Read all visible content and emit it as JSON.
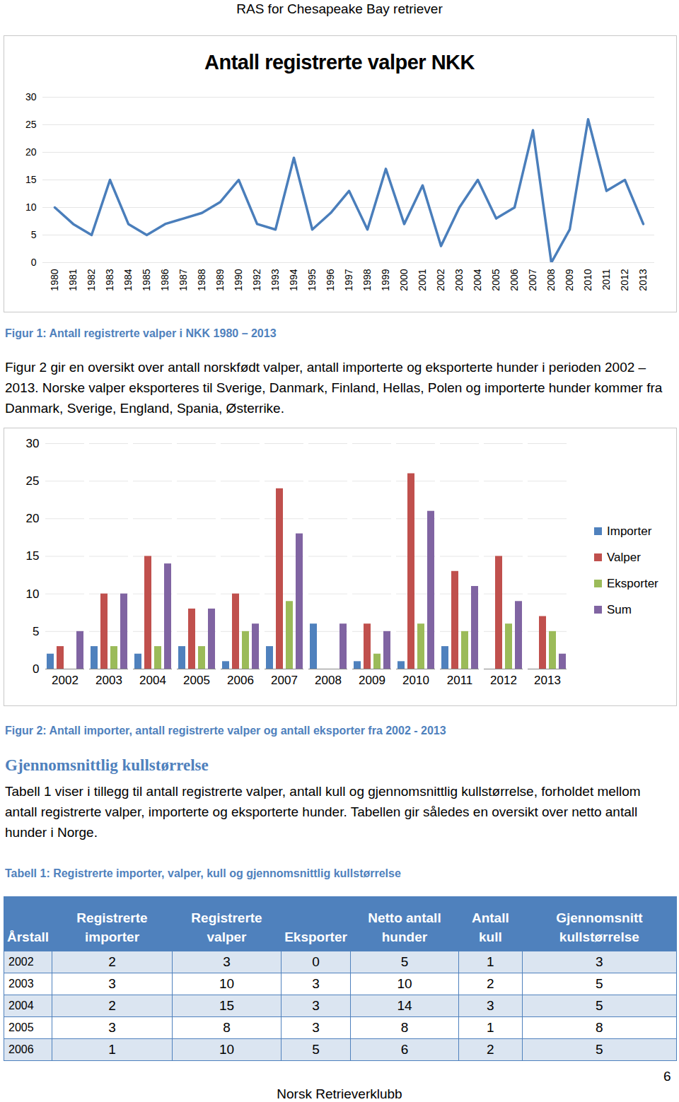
{
  "header": "RAS for Chesapeake Bay retriever",
  "chart_data": [
    {
      "type": "line",
      "title": "Antall registrerte valper NKK",
      "categories": [
        "1980",
        "1981",
        "1982",
        "1983",
        "1984",
        "1985",
        "1986",
        "1987",
        "1988",
        "1989",
        "1990",
        "1992",
        "1993",
        "1994",
        "1995",
        "1996",
        "1997",
        "1998",
        "1999",
        "2000",
        "2001",
        "2002",
        "2003",
        "2004",
        "2005",
        "2006",
        "2007",
        "2008",
        "2009",
        "2010",
        "2011",
        "2012",
        "2013"
      ],
      "values": [
        10,
        7,
        5,
        15,
        7,
        5,
        7,
        8,
        9,
        11,
        15,
        7,
        6,
        19,
        6,
        9,
        13,
        6,
        17,
        7,
        14,
        3,
        10,
        15,
        8,
        10,
        24,
        0,
        6,
        26,
        13,
        15,
        7
      ],
      "color": "#4A7EBB",
      "ylim": [
        0,
        30
      ],
      "yticks": [
        0,
        5,
        10,
        15,
        20,
        25,
        30
      ],
      "grid": true
    },
    {
      "type": "bar",
      "categories": [
        "2002",
        "2003",
        "2004",
        "2005",
        "2006",
        "2007",
        "2008",
        "2009",
        "2010",
        "2011",
        "2012",
        "2013"
      ],
      "series": [
        {
          "name": "Importer",
          "color": "#4F81BD",
          "values": [
            2,
            3,
            2,
            3,
            1,
            3,
            6,
            1,
            1,
            3,
            0,
            0
          ]
        },
        {
          "name": "Valper",
          "color": "#C0504D",
          "values": [
            3,
            10,
            15,
            8,
            10,
            24,
            0,
            6,
            26,
            13,
            15,
            7
          ]
        },
        {
          "name": "Eksporter",
          "color": "#9BBB59",
          "values": [
            0,
            3,
            3,
            3,
            5,
            9,
            0,
            2,
            6,
            5,
            6,
            5
          ]
        },
        {
          "name": "Sum",
          "color": "#8064A2",
          "values": [
            5,
            10,
            14,
            8,
            6,
            18,
            6,
            5,
            21,
            11,
            9,
            2
          ]
        }
      ],
      "ylim": [
        0,
        30
      ],
      "yticks": [
        0,
        5,
        10,
        15,
        20,
        25,
        30
      ],
      "grid": true,
      "legend": "right"
    }
  ],
  "text": {
    "caption1": "Figur 1: Antall registrerte valper i NKK 1980 – 2013",
    "paragraph1": "Figur 2 gir en oversikt over antall norskfødt valper, antall importerte og eksporterte hunder i perioden 2002 – 2013. Norske valper eksporteres til Sverige, Danmark, Finland, Hellas, Polen og importerte hunder kommer fra Danmark, Sverige, England, Spania, Østerrike.",
    "caption2": "Figur 2: Antall importer, antall registrerte valper og antall eksporter fra 2002 - 2013",
    "heading": "Gjennomsnittlig kullstørrelse",
    "paragraph2": "Tabell 1 viser i tillegg til antall registrerte valper, antall kull og gjennomsnittlig kullstørrelse, forholdet mellom antall registrerte valper, importerte og eksporterte hunder. Tabellen gir således en oversikt over netto antall hunder i Norge.",
    "table_caption": "Tabell 1: Registrerte importer, valper, kull og gjennomsnittlig kullstørrelse"
  },
  "table": {
    "columns": [
      "Årstall",
      "Registrerte importer",
      "Registrerte valper",
      "Eksporter",
      "Netto antall hunder",
      "Antall kull",
      "Gjennomsnitt kullstørrelse"
    ],
    "rows": [
      [
        2002,
        2,
        3,
        0,
        5,
        1,
        3
      ],
      [
        2003,
        3,
        10,
        3,
        10,
        2,
        5
      ],
      [
        2004,
        2,
        15,
        3,
        14,
        3,
        5
      ],
      [
        2005,
        3,
        8,
        3,
        8,
        1,
        8
      ],
      [
        2006,
        1,
        10,
        5,
        6,
        2,
        5
      ]
    ]
  },
  "footer": "Norsk Retrieverklubb",
  "page_number": 6
}
